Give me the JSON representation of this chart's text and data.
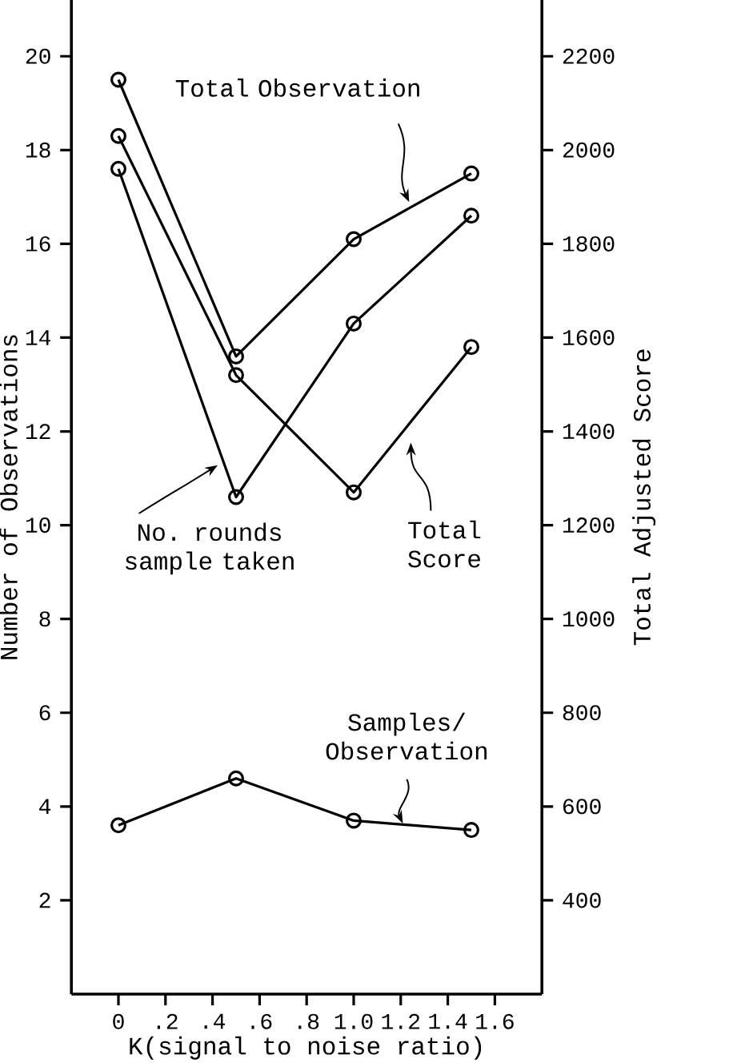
{
  "chart_data": {
    "type": "line",
    "xlabel": "K(signal to noise ratio)",
    "ylabel": "Number of Observations",
    "y2label": "Total Adjusted Score",
    "x": [
      0,
      0.5,
      1.0,
      1.5
    ],
    "xlim": [
      -0.2,
      1.8
    ],
    "xticks": [
      0,
      {
        "value": 0.2,
        "label": ".2"
      },
      {
        "value": 0.4,
        "label": ".4"
      },
      {
        "value": 0.6,
        "label": ".6"
      },
      {
        "value": 0.8,
        "label": ".8"
      },
      {
        "value": 1.0,
        "label": "1.0"
      },
      1.2,
      1.4,
      1.6
    ],
    "ylim": [
      0,
      21.2
    ],
    "yticks": [
      2,
      4,
      6,
      8,
      10,
      12,
      14,
      16,
      18,
      20
    ],
    "y2lim": [
      200,
      2320
    ],
    "y2ticks": [
      400,
      600,
      800,
      1000,
      1200,
      1400,
      1600,
      1800,
      2000,
      2200
    ],
    "marker": "circle",
    "line_style": "solid",
    "series": [
      {
        "name": "Total Observation",
        "color": "#000000",
        "values": [
          19.5,
          13.6,
          16.1,
          17.5
        ]
      },
      {
        "name": "No. rounds sample taken",
        "color": "#000000",
        "values": [
          17.6,
          10.6,
          14.3,
          16.6
        ]
      },
      {
        "name": "Total Score",
        "color": "#000000",
        "axis": "y2",
        "values": [
          2030,
          1520,
          1270,
          1580
        ]
      },
      {
        "name": "Samples/ Observation",
        "color": "#000000",
        "values": [
          3.6,
          4.6,
          3.7,
          3.5
        ]
      }
    ]
  }
}
